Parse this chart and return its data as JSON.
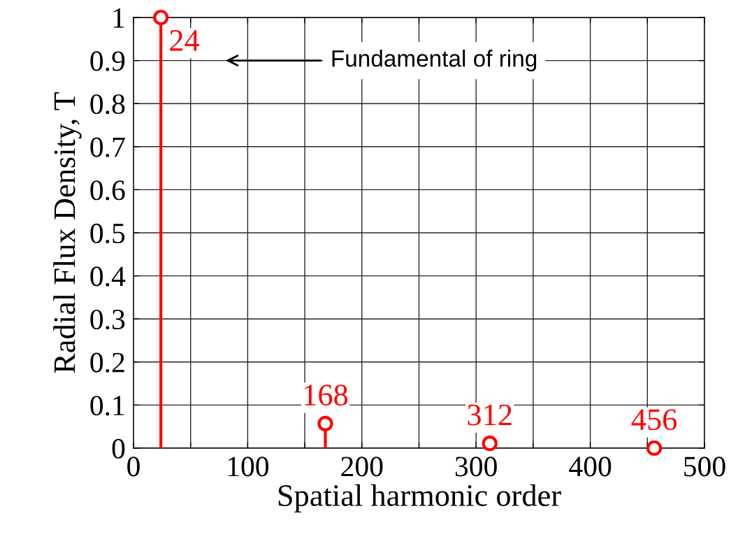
{
  "chart_data": {
    "type": "lollipop",
    "xlabel": "Spatial harmonic order",
    "ylabel": "Radial Flux Density, T",
    "x": [
      24,
      168,
      312,
      456
    ],
    "series": [
      {
        "color": "#ff0000",
        "values": [
          1.0,
          0.057,
          0.011,
          0.0
        ]
      }
    ],
    "marker": "circle",
    "xlim": [
      0,
      500
    ],
    "xticks": [
      0,
      {
        "value": 50,
        "label": null
      },
      100,
      {
        "value": 150,
        "label": null
      },
      200,
      {
        "value": 250,
        "label": null
      },
      300,
      {
        "value": 350,
        "label": null
      },
      400,
      {
        "value": 450,
        "label": null
      },
      500
    ],
    "ylim": [
      0,
      1
    ],
    "yticks": [
      0,
      0.1,
      0.2,
      0.3,
      0.4,
      0.5,
      0.6,
      0.7,
      0.8,
      0.9,
      1
    ],
    "grid": true,
    "annotations": [
      {
        "text": "24",
        "x": 24,
        "y": 1.0
      },
      {
        "text": "168",
        "x": 168,
        "y": 0.057
      },
      {
        "text": "312",
        "x": 312,
        "y": 0.011
      },
      {
        "text": "456",
        "x": 456,
        "y": 0.0
      },
      "Fundamental of ring"
    ]
  }
}
